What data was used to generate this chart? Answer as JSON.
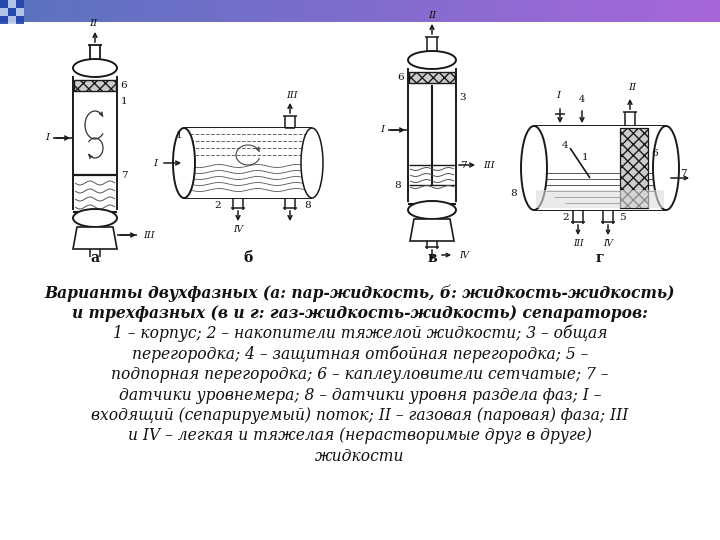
{
  "bg_color": "#ffffff",
  "caption_lines": [
    "Варианты двухфазных (а: пар-жидкость, б: жидкость-жидкость)",
    "и трехфазных (в и г: газ-жидкость-жидкость) сепараторов:",
    "1 – корпус; 2 – накопители тяжелой жидкости; 3 – общая",
    "перегородка; 4 – защитная отбойная перегородка; 5 –",
    "подпорная перегородка; 6 – каплеуловители сетчатые; 7 –",
    "датчики уровнемера; 8 – датчики уровня раздела фаз; I –",
    "входящий (сепарируемый) поток; II – газовая (паровая) фаза; III",
    "и IV – легкая и тяжелая (нерастворимые друг в друге)",
    "жидкости"
  ],
  "caption_fontsize": 11.2,
  "line_color": "#1a1a1a",
  "lw": 1.1
}
